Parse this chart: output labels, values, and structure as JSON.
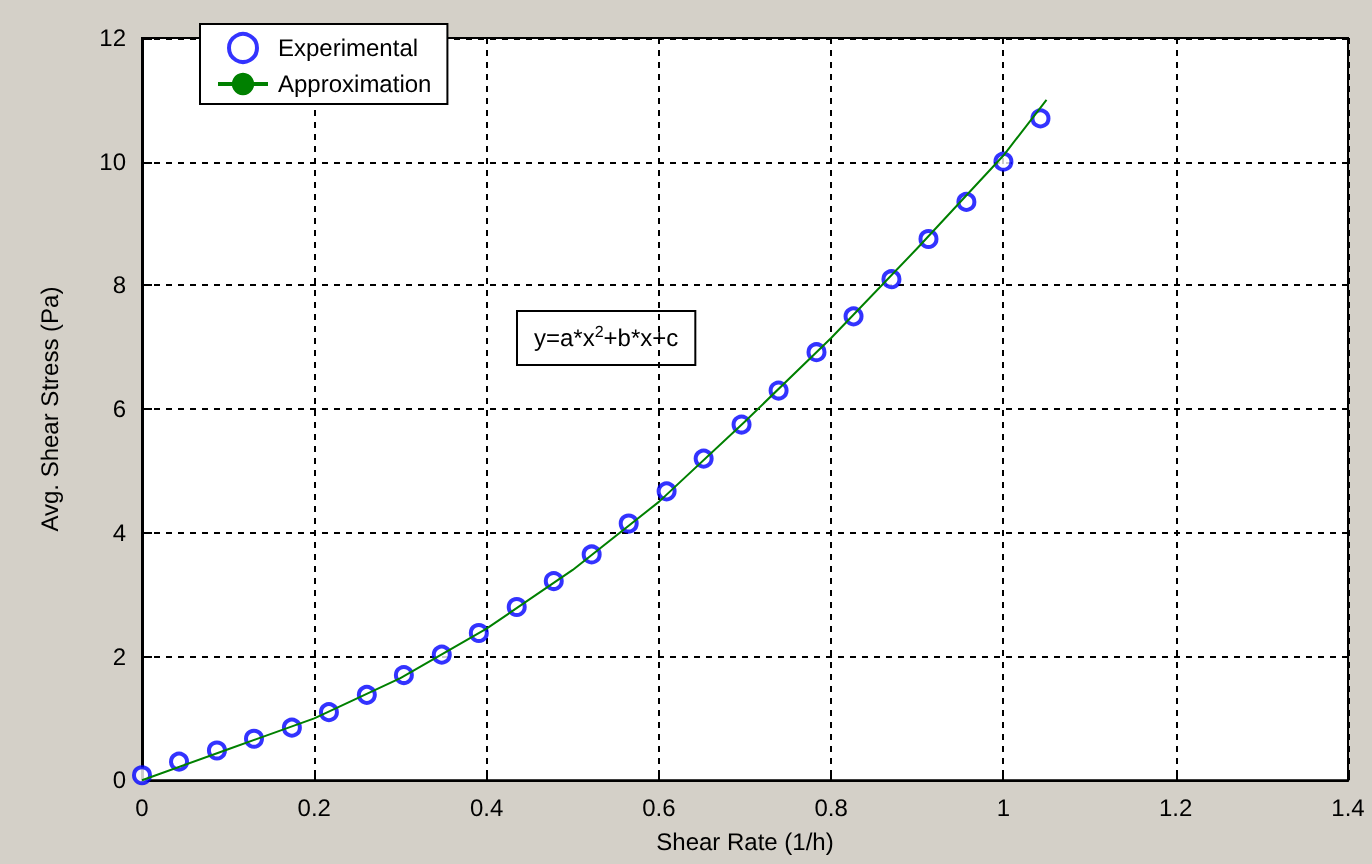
{
  "chart_data": {
    "type": "scatter",
    "xlabel": "Shear Rate (1/h)",
    "ylabel": "Avg. Shear Stress (Pa)",
    "xlim": [
      0,
      1.4
    ],
    "xticks": [
      0,
      0.2,
      0.4,
      0.6,
      0.8,
      1,
      1.2,
      1.4
    ],
    "ylim": [
      0,
      12
    ],
    "yticks": [
      0,
      2,
      4,
      6,
      8,
      10,
      12
    ],
    "grid": true,
    "legend": "top left",
    "annotations": [
      "y=a*x$^{2}$+b*x+c"
    ],
    "series": [
      {
        "name": "Experimental",
        "marker": "circle",
        "color": "#0000ff",
        "x": [
          0,
          0.043,
          0.087,
          0.13,
          0.174,
          0.217,
          0.261,
          0.304,
          0.348,
          0.391,
          0.435,
          0.478,
          0.522,
          0.565,
          0.609,
          0.652,
          0.696,
          0.739,
          0.783,
          0.826,
          0.87,
          0.913,
          0.957,
          1.0,
          1.043
        ],
        "values": [
          0.08,
          0.3,
          0.48,
          0.67,
          0.85,
          1.1,
          1.38,
          1.7,
          2.03,
          2.38,
          2.8,
          3.22,
          3.65,
          4.15,
          4.67,
          5.2,
          5.75,
          6.3,
          6.92,
          7.5,
          8.1,
          8.75,
          9.35,
          10.0,
          10.7
        ]
      },
      {
        "name": "Approximation",
        "type": "line",
        "marker": "none",
        "line_style": "solid",
        "color": "#008000",
        "x": [
          0,
          0.1,
          0.2,
          0.3,
          0.4,
          0.5,
          0.6,
          0.7,
          0.8,
          0.9,
          1.0,
          1.05
        ],
        "values": [
          0,
          0.5,
          1.0,
          1.65,
          2.45,
          3.4,
          4.5,
          5.8,
          7.15,
          8.6,
          10.1,
          11.0
        ]
      }
    ]
  }
}
